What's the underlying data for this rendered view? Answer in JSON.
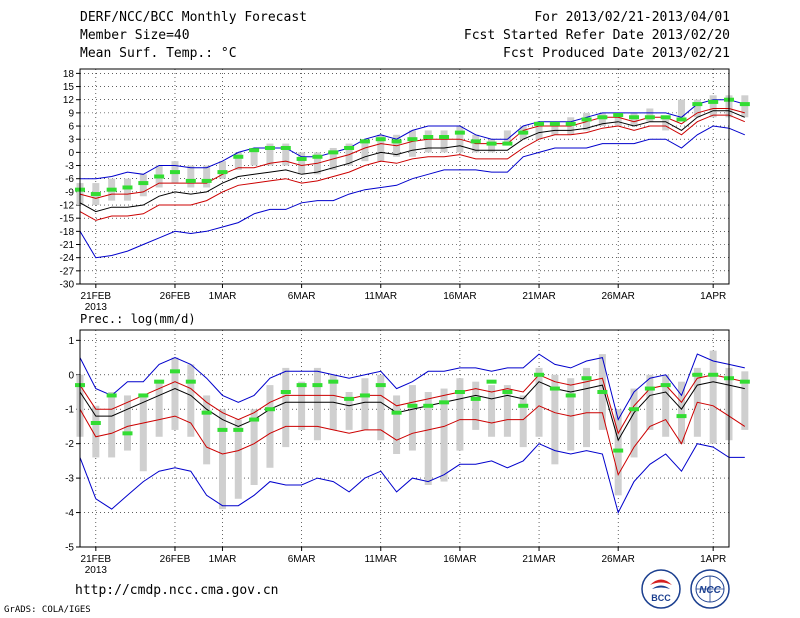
{
  "header": {
    "title": "DERF/NCC/BCC Monthly Forecast",
    "member_size": "Member Size=40",
    "variable": "Mean Surf. Temp.: °C",
    "forecast_period": "For 2013/02/21-2013/04/01",
    "started_refer": "Fcst Started Refer Date 2013/02/20",
    "produced": "Fcst Produced Date 2013/02/21"
  },
  "footer": {
    "url": "http://cmdp.ncc.cma.gov.cn",
    "grads": "GrADS: COLA/IGES",
    "logo1": "BCC",
    "logo2": "NCC"
  },
  "colors": {
    "mean": "#000000",
    "inner": "#cc0000",
    "outer": "#0000cc",
    "green": "#33dd33",
    "box": "#cfcfcf"
  },
  "chart_data": [
    {
      "type": "line",
      "name": "temperature",
      "label": "",
      "ylim": [
        -30,
        19
      ],
      "yticks": [
        18,
        15,
        12,
        9,
        6,
        3,
        0,
        -3,
        -6,
        -9,
        -12,
        -15,
        -18,
        -21,
        -24,
        -27,
        -30
      ],
      "ytick_labels": [
        "18",
        "15",
        "12",
        "9",
        "6",
        "3",
        "0",
        "-3",
        "-6",
        "-9",
        "-12",
        "-15",
        "-18",
        "-21",
        "-24",
        "-27",
        "-30"
      ],
      "xlim": [
        0,
        41
      ],
      "xticks": [
        {
          "x": 1,
          "label": "21FEB",
          "sub": "2013"
        },
        {
          "x": 6,
          "label": "26FEB"
        },
        {
          "x": 9,
          "label": "1MAR"
        },
        {
          "x": 14,
          "label": "6MAR"
        },
        {
          "x": 19,
          "label": "11MAR"
        },
        {
          "x": 24,
          "label": "16MAR"
        },
        {
          "x": 29,
          "label": "21MAR"
        },
        {
          "x": 34,
          "label": "26MAR"
        },
        {
          "x": 40,
          "label": "1APR"
        }
      ],
      "box_low": [
        -12,
        -12,
        -11,
        -11,
        -10,
        -8,
        -7,
        -8,
        -8,
        -6,
        -4,
        -3,
        -3,
        -3,
        -5,
        -5,
        -4,
        -3,
        -2,
        -2,
        -1,
        -1,
        0,
        0,
        0,
        0,
        0,
        2,
        3,
        3,
        4,
        4,
        5,
        6,
        6,
        6,
        7,
        5,
        8,
        8,
        8,
        8,
        8
      ],
      "box_high": [
        -7,
        -7,
        -6,
        -6,
        -5,
        -3,
        -2,
        -3,
        -3,
        -2,
        0,
        1,
        2,
        2,
        0,
        0,
        1,
        2,
        3,
        4,
        4,
        5,
        5,
        5,
        6,
        4,
        3,
        5,
        6,
        7,
        7,
        8,
        9,
        9,
        9,
        9,
        10,
        8,
        12,
        12,
        13,
        13,
        13
      ],
      "mean": [
        -11.5,
        -13.5,
        -12.5,
        -12.5,
        -12,
        -10,
        -9,
        -9.5,
        -9,
        -7,
        -5.5,
        -5,
        -4.5,
        -4,
        -5,
        -4.5,
        -3.5,
        -2.5,
        -1,
        0,
        -0.5,
        0.5,
        1,
        1,
        1.5,
        0.5,
        0.5,
        0.5,
        3,
        4.5,
        5,
        5,
        5.5,
        6.5,
        7,
        6,
        7,
        7,
        5,
        8,
        9.5,
        9.5,
        8
      ],
      "inner_high": [
        -9.5,
        -10.5,
        -9.5,
        -9.5,
        -9,
        -7,
        -7,
        -7,
        -7,
        -5,
        -3.5,
        -3.5,
        -2.5,
        -2,
        -3,
        -2.5,
        -1.5,
        -0.5,
        1,
        2,
        1.5,
        2.5,
        3,
        3,
        3,
        2,
        2,
        2,
        5,
        6,
        6,
        6,
        7,
        8,
        8,
        7,
        8,
        8,
        6.5,
        9,
        10,
        10,
        9
      ],
      "inner_low": [
        -13.5,
        -15.5,
        -14.5,
        -14.5,
        -14,
        -12,
        -12,
        -12,
        -11,
        -9,
        -7.5,
        -7,
        -6.5,
        -6,
        -7,
        -6.5,
        -5.5,
        -4.5,
        -3,
        -2,
        -2.5,
        -1.5,
        -1,
        -1,
        -0.5,
        -1.5,
        -1.5,
        -1.5,
        1,
        3,
        4,
        4,
        4.5,
        5.5,
        6,
        5,
        6,
        6,
        4,
        7,
        8.5,
        8.5,
        7
      ],
      "outer_high": [
        -6,
        -6,
        -5.5,
        -4.5,
        -5,
        -3,
        -3,
        -3.5,
        -3.5,
        -2,
        0,
        1,
        1,
        1,
        -1,
        -1,
        0,
        1,
        3,
        4,
        3,
        5,
        6,
        6,
        6,
        4,
        3,
        3,
        6,
        7,
        7,
        7,
        8,
        9,
        9,
        9,
        9,
        9,
        8,
        11,
        12,
        12,
        11
      ],
      "outer_low": [
        -18,
        -24,
        -23.5,
        -22.5,
        -21,
        -19.5,
        -18,
        -18.5,
        -18,
        -17,
        -16,
        -14,
        -13,
        -13,
        -11.5,
        -11,
        -11,
        -9.5,
        -8.5,
        -8,
        -7.5,
        -6,
        -5,
        -4,
        -4,
        -4,
        -4.5,
        -4.5,
        -1,
        0,
        1,
        1,
        1,
        2,
        2,
        2,
        3,
        3,
        1,
        4,
        6,
        5.5,
        4
      ],
      "green": [
        -8.5,
        -9.5,
        -8.5,
        -8,
        -7,
        -5.5,
        -4.5,
        -6.5,
        -6.5,
        -4.5,
        -1,
        0.5,
        1,
        1,
        -1.5,
        -1,
        0,
        1,
        2.5,
        3,
        2.5,
        3,
        3.5,
        3.5,
        4.5,
        2.5,
        2,
        2,
        4.5,
        6.5,
        6.5,
        6.5,
        7.5,
        8,
        8.5,
        8,
        8,
        8,
        7.5,
        11,
        11.5,
        12,
        11
      ]
    },
    {
      "type": "line",
      "name": "precipitation",
      "label": "Prec.: log(mm/d)",
      "ylim": [
        -5,
        1.3
      ],
      "yticks": [
        1,
        0,
        -1,
        -2,
        -3,
        -4,
        -5
      ],
      "ytick_labels": [
        "1",
        "0",
        "-1",
        "-2",
        "-3",
        "-4",
        "-5"
      ],
      "xlim": [
        0,
        41
      ],
      "xticks": [
        {
          "x": 1,
          "label": "21FEB",
          "sub": "2013"
        },
        {
          "x": 6,
          "label": "26FEB"
        },
        {
          "x": 9,
          "label": "1MAR"
        },
        {
          "x": 14,
          "label": "6MAR"
        },
        {
          "x": 19,
          "label": "11MAR"
        },
        {
          "x": 24,
          "label": "16MAR"
        },
        {
          "x": 29,
          "label": "21MAR"
        },
        {
          "x": 34,
          "label": "26MAR"
        },
        {
          "x": 40,
          "label": "1APR"
        }
      ],
      "box_low": [
        -1.8,
        -2.4,
        -2.4,
        -2.2,
        -2.8,
        -1.8,
        -1.6,
        -1.8,
        -2.6,
        -3.9,
        -3.6,
        -3.2,
        -2.7,
        -2.1,
        -1.6,
        -1.9,
        -1.6,
        -1.6,
        -1.6,
        -1.9,
        -2.3,
        -2.2,
        -3.2,
        -3.1,
        -2.2,
        -1.6,
        -1.8,
        -1.8,
        -2.1,
        -1.8,
        -2.6,
        -2.2,
        -2.1,
        -1.6,
        -3.5,
        -2.4,
        -1.6,
        -1.8,
        -2.0,
        -1.8,
        -2.0,
        -1.9,
        -1.6
      ],
      "box_high": [
        0.0,
        -0.9,
        -0.5,
        -0.6,
        -0.6,
        -0.2,
        0.5,
        0.3,
        -0.6,
        -1.0,
        -1.3,
        -1.0,
        -0.3,
        0.2,
        -0.2,
        0.2,
        0.0,
        -0.5,
        -0.1,
        0.0,
        -0.6,
        -0.3,
        -0.5,
        -0.4,
        -0.1,
        -0.2,
        -0.3,
        -0.3,
        -0.6,
        0.2,
        0.0,
        -0.1,
        0.2,
        0.6,
        -1.0,
        -0.4,
        0.0,
        0.0,
        -0.2,
        0.2,
        0.7,
        0.2,
        0.1
      ],
      "mean": [
        -0.5,
        -1.2,
        -1.2,
        -1.0,
        -0.8,
        -0.6,
        -0.4,
        -0.6,
        -1.0,
        -1.3,
        -1.5,
        -1.3,
        -1.0,
        -0.8,
        -0.8,
        -0.8,
        -0.8,
        -0.9,
        -0.8,
        -0.8,
        -1.1,
        -1.0,
        -0.9,
        -0.8,
        -0.7,
        -0.6,
        -0.7,
        -0.6,
        -0.7,
        -0.2,
        -0.4,
        -0.5,
        -0.4,
        -0.3,
        -1.9,
        -1.1,
        -0.6,
        -0.5,
        -1.0,
        -0.3,
        -0.2,
        -0.3,
        -0.4
      ],
      "inner_high": [
        -0.3,
        -1.0,
        -1.0,
        -0.8,
        -0.6,
        -0.4,
        -0.2,
        -0.4,
        -0.8,
        -1.1,
        -1.3,
        -1.1,
        -0.8,
        -0.6,
        -0.6,
        -0.6,
        -0.6,
        -0.7,
        -0.6,
        -0.6,
        -0.9,
        -0.8,
        -0.7,
        -0.6,
        -0.5,
        -0.4,
        -0.5,
        -0.4,
        -0.5,
        0.0,
        -0.2,
        -0.3,
        -0.2,
        -0.1,
        -1.7,
        -0.9,
        -0.4,
        -0.3,
        -0.8,
        -0.1,
        0.0,
        -0.1,
        -0.2
      ],
      "inner_low": [
        -1.0,
        -1.8,
        -1.7,
        -1.5,
        -1.4,
        -1.3,
        -1.2,
        -1.4,
        -2.1,
        -2.3,
        -2.2,
        -2.0,
        -1.7,
        -1.5,
        -1.5,
        -1.5,
        -1.6,
        -1.7,
        -1.6,
        -1.6,
        -1.9,
        -1.7,
        -1.6,
        -1.5,
        -1.3,
        -1.3,
        -1.4,
        -1.3,
        -1.3,
        -0.9,
        -1.1,
        -1.2,
        -1.1,
        -1.1,
        -2.9,
        -2.1,
        -1.5,
        -1.3,
        -2.0,
        -0.8,
        -0.9,
        -1.2,
        -1.5
      ],
      "outer_high": [
        0.5,
        -0.4,
        -0.6,
        -0.2,
        -0.2,
        0.3,
        0.5,
        0.3,
        -0.1,
        -0.6,
        -0.8,
        -0.6,
        -0.1,
        0.1,
        0.1,
        0.1,
        0.0,
        -0.1,
        0.0,
        0.1,
        -0.4,
        -0.2,
        0.1,
        0.1,
        0.2,
        0.2,
        0.1,
        0.2,
        0.2,
        0.6,
        0.3,
        0.2,
        0.4,
        0.5,
        -1.3,
        -0.5,
        -0.1,
        0.0,
        -0.6,
        0.6,
        0.4,
        0.3,
        0.2
      ],
      "outer_low": [
        -2.4,
        -3.6,
        -3.9,
        -3.5,
        -3.1,
        -2.8,
        -2.7,
        -2.8,
        -3.5,
        -3.8,
        -3.8,
        -3.5,
        -3.1,
        -3.2,
        -3.2,
        -3.0,
        -3.1,
        -3.4,
        -3.0,
        -2.8,
        -3.4,
        -3.0,
        -3.1,
        -2.9,
        -2.6,
        -2.6,
        -2.5,
        -2.7,
        -2.5,
        -2.0,
        -2.2,
        -2.3,
        -2.2,
        -2.3,
        -4.0,
        -3.1,
        -2.6,
        -2.3,
        -2.8,
        -2.0,
        -2.1,
        -2.4,
        -2.4
      ],
      "green": [
        -0.3,
        -1.4,
        -0.6,
        -1.7,
        -0.6,
        -0.2,
        0.1,
        -0.2,
        -1.1,
        -1.6,
        -1.6,
        -1.3,
        -1.0,
        -0.5,
        -0.3,
        -0.3,
        -0.2,
        -0.7,
        -0.6,
        -0.3,
        -1.1,
        -0.9,
        -0.9,
        -0.8,
        -0.5,
        -0.7,
        -0.2,
        -0.5,
        -0.9,
        0.0,
        -0.4,
        -0.6,
        -0.1,
        -0.5,
        -2.2,
        -1.0,
        -0.4,
        -0.3,
        -1.2,
        0.0,
        0.0,
        -0.1,
        -0.2
      ]
    }
  ]
}
